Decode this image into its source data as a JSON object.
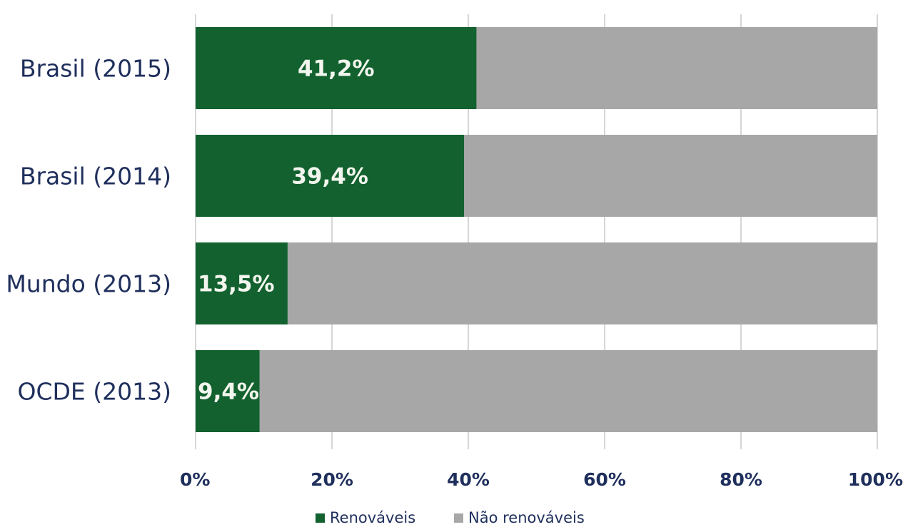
{
  "chart_data": {
    "type": "bar",
    "orientation": "horizontal",
    "stacked": true,
    "categories": [
      "Brasil (2015)",
      "Brasil (2014)",
      "Mundo (2013)",
      "OCDE (2013)"
    ],
    "series": [
      {
        "name": "Renováveis",
        "values": [
          41.2,
          39.4,
          13.5,
          9.4
        ],
        "color": "#12612f"
      },
      {
        "name": "Não renováveis",
        "values": [
          58.8,
          60.6,
          86.5,
          90.6
        ],
        "color": "#a7a7a7"
      }
    ],
    "data_labels": [
      "41,2%",
      "39,4%",
      "13,5%",
      "9,4%"
    ],
    "xlim": [
      0,
      100
    ],
    "x_ticks": [
      0,
      20,
      40,
      60,
      80,
      100
    ],
    "x_tick_labels": [
      "0%",
      "20%",
      "40%",
      "60%",
      "80%",
      "100%"
    ],
    "grid": "vertical",
    "legend_position": "bottom"
  },
  "colors": {
    "text": "#1f2f5c",
    "grid": "#c9c9c9",
    "data_label": "#f3f6ee"
  }
}
